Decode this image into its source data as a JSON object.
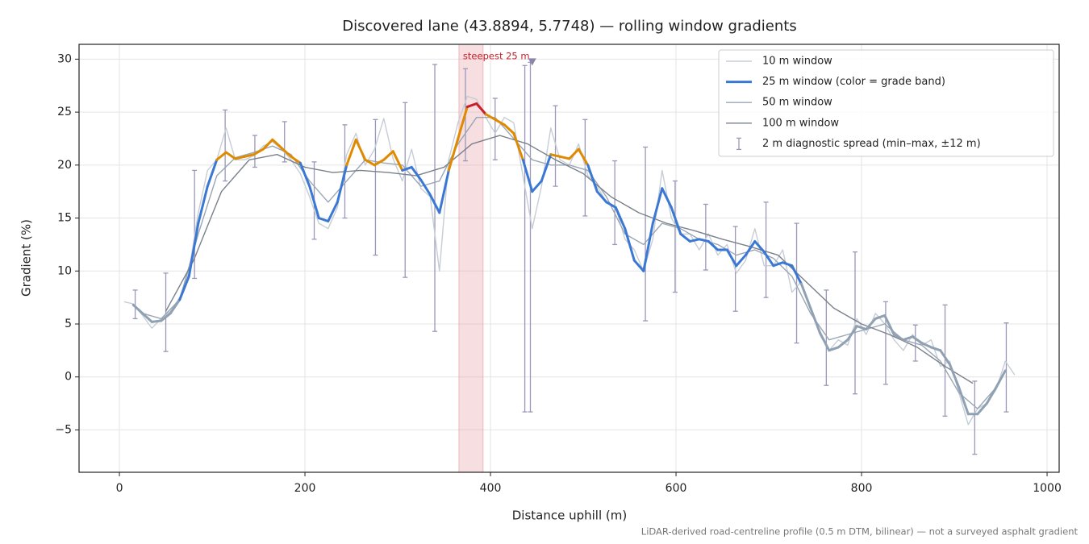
{
  "chart_data": {
    "type": "line",
    "title": "Discovered lane (43.8894, 5.7748) — rolling window gradients",
    "x_label": "Distance uphill (m)",
    "y_label": "Gradient (%)",
    "footnote": "LiDAR-derived road-centreline profile (0.5 m DTM, bilinear) — not a surveyed asphalt gradient",
    "xlim": [
      -43.5,
      1013
    ],
    "ylim": [
      -9.0,
      31.4
    ],
    "xticks": [
      0,
      200,
      400,
      600,
      800,
      1000
    ],
    "yticks": [
      {
        "value": -5,
        "label": "−5"
      },
      0,
      5,
      10,
      15,
      20,
      25,
      30
    ],
    "grid": true,
    "legend": "upper right",
    "highlight": {
      "label": "steepest 25 m",
      "x_range": [
        366,
        392
      ],
      "color": "#e9a3aa"
    },
    "marker": {
      "x": 445,
      "y": 29.7,
      "color": "#8a86a8"
    },
    "series": [
      {
        "name": "10 m window",
        "color": "#c6cdd5",
        "width": 1.4,
        "x": [
          5,
          15,
          25,
          35,
          45,
          55,
          65,
          75,
          85,
          95,
          105,
          115,
          125,
          135,
          145,
          155,
          165,
          175,
          185,
          195,
          205,
          215,
          225,
          235,
          245,
          255,
          265,
          275,
          285,
          295,
          305,
          315,
          325,
          335,
          345,
          355,
          365,
          375,
          385,
          395,
          405,
          415,
          425,
          435,
          445,
          455,
          465,
          475,
          485,
          495,
          505,
          515,
          525,
          535,
          545,
          555,
          565,
          575,
          585,
          595,
          605,
          615,
          625,
          635,
          645,
          655,
          665,
          675,
          685,
          695,
          705,
          715,
          725,
          735,
          745,
          755,
          765,
          775,
          785,
          795,
          805,
          815,
          825,
          835,
          845,
          855,
          865,
          875,
          885,
          895,
          905,
          915,
          925,
          935,
          945,
          955,
          965
        ],
        "values": [
          7.1,
          6.9,
          5.8,
          4.6,
          5.5,
          6.2,
          7.5,
          10,
          15.5,
          19.5,
          20.5,
          23.5,
          20.5,
          20.5,
          20.9,
          21.8,
          22.2,
          21.5,
          20.5,
          19.2,
          17,
          14.5,
          14,
          16,
          21,
          23,
          20,
          21.5,
          24.4,
          20.6,
          18.5,
          21.5,
          17.8,
          17,
          10,
          20.5,
          24,
          26.5,
          26.2,
          24.5,
          23,
          24.5,
          24,
          19,
          14,
          18,
          23.5,
          20.5,
          20,
          22,
          19,
          18,
          16.5,
          16,
          13,
          12,
          10,
          13,
          19.5,
          15,
          13.5,
          13.5,
          12,
          13.5,
          11.5,
          12.5,
          9.8,
          11,
          14,
          10.5,
          10.5,
          12,
          8,
          9,
          6.5,
          4,
          2.5,
          3.5,
          3,
          5.5,
          4,
          6,
          5,
          3.5,
          2.5,
          4,
          3,
          3.5,
          1,
          1.5,
          -1.5,
          -4.5,
          -3,
          -2.5,
          -1.2,
          1.5,
          0.2
        ]
      },
      {
        "name": "25 m window (color = grade band)",
        "color": "#3a78d4",
        "width": 3,
        "band_edges": [
          8,
          20,
          25
        ],
        "band_colors": [
          "#8fa1b3",
          "#3a78d4",
          "#e08a00",
          "#c8202a"
        ],
        "x": [
          15,
          25,
          35,
          45,
          55,
          65,
          75,
          85,
          95,
          105,
          115,
          125,
          135,
          145,
          155,
          165,
          175,
          185,
          195,
          205,
          215,
          225,
          235,
          245,
          255,
          265,
          275,
          285,
          295,
          305,
          315,
          325,
          335,
          345,
          355,
          365,
          375,
          385,
          395,
          405,
          415,
          425,
          435,
          445,
          455,
          465,
          475,
          485,
          495,
          505,
          515,
          525,
          535,
          545,
          555,
          565,
          575,
          585,
          595,
          605,
          615,
          625,
          635,
          645,
          655,
          665,
          675,
          685,
          695,
          705,
          715,
          725,
          735,
          745,
          755,
          765,
          775,
          785,
          795,
          805,
          815,
          825,
          835,
          845,
          855,
          865,
          875,
          885,
          895,
          905,
          915,
          925,
          935,
          945,
          955
        ],
        "values": [
          6.8,
          6.0,
          5.2,
          5.3,
          6.0,
          7.3,
          9.5,
          14.5,
          18,
          20.5,
          21.2,
          20.6,
          20.8,
          21,
          21.5,
          22.4,
          21.6,
          20.8,
          20.2,
          18,
          15,
          14.7,
          16.5,
          20,
          22.4,
          20.5,
          20,
          20.5,
          21.3,
          19.5,
          19.8,
          18.6,
          17.2,
          15.5,
          19.5,
          22.5,
          25.5,
          25.8,
          24.8,
          24.3,
          23.8,
          23,
          20.5,
          17.5,
          18.5,
          21,
          20.8,
          20.6,
          21.5,
          20,
          17.5,
          16.5,
          16,
          14,
          11,
          10,
          14.5,
          17.8,
          16,
          13.5,
          12.8,
          13,
          12.8,
          12,
          12,
          10.5,
          11.5,
          12.8,
          11.8,
          10.5,
          10.8,
          10.5,
          8.8,
          6.5,
          4.2,
          2.5,
          2.8,
          3.5,
          4.8,
          4.5,
          5.5,
          5.8,
          4.0,
          3.5,
          3.8,
          3.2,
          2.8,
          2.5,
          1.2,
          -1.0,
          -3.5,
          -3.5,
          -2.5,
          -1.0,
          0.6
        ]
      },
      {
        "name": "50 m window",
        "color": "#9aa6b4",
        "width": 1.4,
        "x": [
          25,
          45,
          65,
          85,
          105,
          125,
          145,
          165,
          185,
          205,
          225,
          245,
          265,
          285,
          305,
          325,
          345,
          365,
          385,
          405,
          425,
          445,
          465,
          485,
          505,
          525,
          545,
          565,
          585,
          605,
          625,
          645,
          665,
          685,
          705,
          725,
          745,
          765,
          785,
          805,
          825,
          845,
          865,
          885,
          905,
          925,
          945
        ],
        "values": [
          6,
          5.5,
          7.3,
          13.5,
          19,
          20.7,
          21.2,
          21.8,
          21,
          18.5,
          16.5,
          18.5,
          20.5,
          20.2,
          20,
          18,
          18.5,
          22,
          24.5,
          24.5,
          22.5,
          20.5,
          20,
          20,
          19.5,
          17,
          13.5,
          12.5,
          14.5,
          14,
          13,
          12.5,
          11.5,
          12,
          11.2,
          9.5,
          6,
          3.5,
          4,
          4.5,
          5,
          3.5,
          3,
          1.5,
          -1.5,
          -3,
          -1
        ]
      },
      {
        "name": "100 m window",
        "color": "#7a808c",
        "width": 1.4,
        "x": [
          50,
          80,
          110,
          140,
          170,
          200,
          230,
          260,
          290,
          320,
          350,
          380,
          410,
          440,
          470,
          500,
          530,
          560,
          590,
          620,
          650,
          680,
          710,
          740,
          770,
          800,
          830,
          860,
          890,
          920
        ],
        "values": [
          6.2,
          11,
          17.5,
          20.5,
          21,
          19.8,
          19.3,
          19.5,
          19.3,
          19,
          19.8,
          22,
          22.8,
          22,
          20.5,
          19.2,
          17,
          15.5,
          14.5,
          13.8,
          13,
          12.3,
          11.5,
          9,
          6.5,
          5,
          4,
          2.8,
          1,
          -0.6
        ]
      }
    ],
    "error_bars": {
      "name": "2 m diagnostic spread (min–max, ±12 m)",
      "color": "#9a98b8",
      "x": [
        17,
        50,
        81,
        114,
        146,
        178,
        210,
        243,
        276,
        308,
        340,
        373,
        405,
        437,
        443,
        470,
        502,
        534,
        567,
        599,
        632,
        664,
        697,
        730,
        762,
        793,
        826,
        858,
        890,
        922,
        956
      ],
      "low": [
        5.5,
        2.4,
        9.3,
        18.5,
        19.8,
        20.3,
        13,
        15,
        11.5,
        9.4,
        4.3,
        20.4,
        20.5,
        -3.3,
        -3.3,
        18,
        15.2,
        12.5,
        5.3,
        8,
        10.1,
        6.2,
        7.5,
        3.2,
        -0.8,
        -1.6,
        -0.7,
        1.5,
        -3.7,
        -7.3,
        -3.3
      ],
      "high": [
        8.2,
        9.8,
        19.5,
        25.2,
        22.8,
        24.1,
        20.3,
        23.8,
        24.3,
        25.9,
        29.5,
        29.1,
        26.3,
        29.4,
        29.7,
        25.6,
        24.3,
        20.4,
        21.7,
        18.5,
        16.3,
        14.2,
        16.5,
        14.5,
        8.2,
        11.8,
        7.1,
        4.9,
        6.8,
        -0.4,
        5.1
      ]
    }
  }
}
